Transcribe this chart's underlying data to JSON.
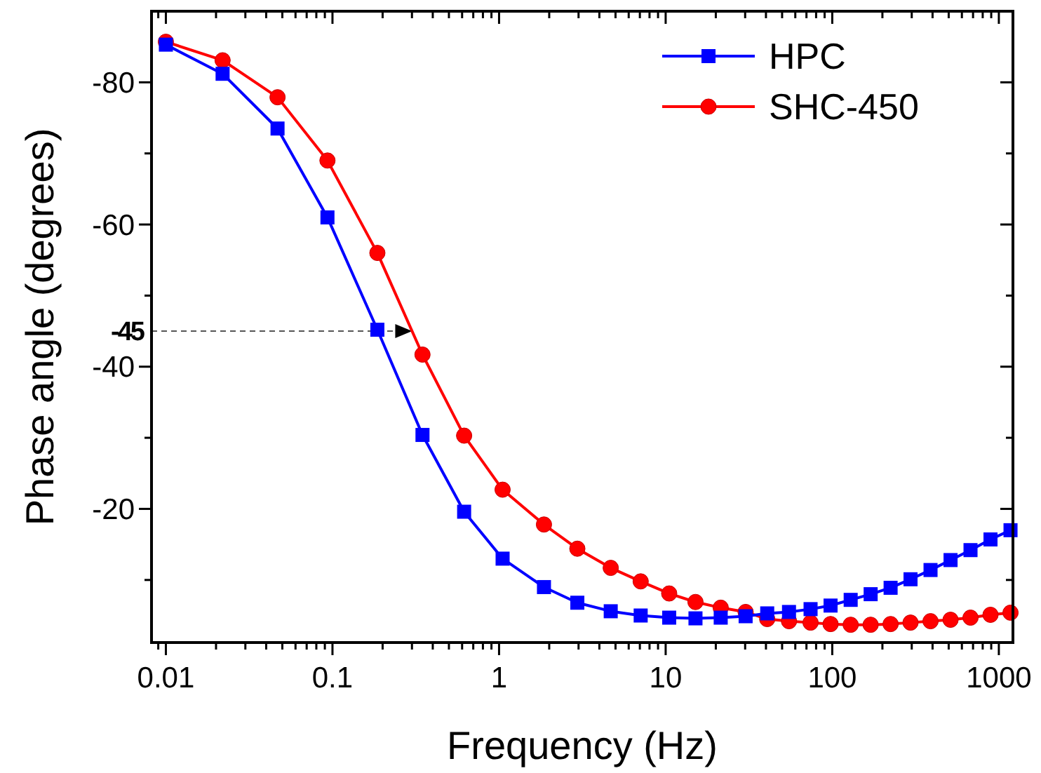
{
  "chart_data": {
    "type": "line",
    "xlabel": "Frequency (Hz)",
    "ylabel": "Phase angle (degrees)",
    "log": "x",
    "legend": "top right",
    "grid": false,
    "line_style": "solid",
    "x": [
      0.01,
      0.0219,
      0.0468,
      0.0933,
      0.186,
      0.347,
      0.617,
      1.05,
      1.86,
      2.95,
      4.68,
      7.08,
      10.5,
      15.1,
      21.4,
      30.2,
      40.7,
      55,
      74.1,
      97.7,
      129,
      170,
      224,
      295,
      389,
      513,
      676,
      891,
      1175
    ],
    "series": [
      {
        "name": "HPC",
        "color": "#0000ff",
        "marker": "square",
        "values": [
          -85.3,
          -81.2,
          -73.5,
          -61.0,
          -45.2,
          -30.4,
          -19.6,
          -13.0,
          -9.0,
          -6.8,
          -5.6,
          -5.0,
          -4.7,
          -4.6,
          -4.7,
          -4.9,
          -5.3,
          -5.5,
          -5.9,
          -6.4,
          -7.2,
          -8.0,
          -8.9,
          -10.1,
          -11.4,
          -12.8,
          -14.2,
          -15.7,
          -17.0
        ]
      },
      {
        "name": "SHC-450",
        "color": "#ff0000",
        "marker": "circle",
        "values": [
          -85.7,
          -83.1,
          -77.9,
          -69.0,
          -56.0,
          -41.7,
          -30.3,
          -22.7,
          -17.8,
          -14.4,
          -11.7,
          -9.8,
          -8.1,
          -6.9,
          -6.1,
          -5.5,
          -4.5,
          -4.2,
          -4.0,
          -3.8,
          -3.7,
          -3.7,
          -3.8,
          -4.0,
          -4.2,
          -4.4,
          -4.7,
          -5.1,
          -5.4
        ]
      }
    ],
    "xlim": [
      0.0082,
      1215
    ],
    "xticks": [
      {
        "value": 0.009,
        "label": null
      },
      0.01,
      {
        "value": 0.02,
        "label": null
      },
      {
        "value": 0.03,
        "label": null
      },
      {
        "value": 0.04,
        "label": null
      },
      {
        "value": 0.05,
        "label": null
      },
      {
        "value": 0.06,
        "label": null
      },
      {
        "value": 0.07,
        "label": null
      },
      {
        "value": 0.08,
        "label": null
      },
      {
        "value": 0.09,
        "label": null
      },
      0.1,
      {
        "value": 0.2,
        "label": null
      },
      {
        "value": 0.3,
        "label": null
      },
      {
        "value": 0.4,
        "label": null
      },
      {
        "value": 0.5,
        "label": null
      },
      {
        "value": 0.6,
        "label": null
      },
      {
        "value": 0.7,
        "label": null
      },
      {
        "value": 0.8,
        "label": null
      },
      {
        "value": 0.9,
        "label": null
      },
      1,
      {
        "value": 2,
        "label": null
      },
      {
        "value": 3,
        "label": null
      },
      {
        "value": 4,
        "label": null
      },
      {
        "value": 5,
        "label": null
      },
      {
        "value": 6,
        "label": null
      },
      {
        "value": 7,
        "label": null
      },
      {
        "value": 8,
        "label": null
      },
      {
        "value": 9,
        "label": null
      },
      10,
      {
        "value": 20,
        "label": null
      },
      {
        "value": 30,
        "label": null
      },
      {
        "value": 40,
        "label": null
      },
      {
        "value": 50,
        "label": null
      },
      {
        "value": 60,
        "label": null
      },
      {
        "value": 70,
        "label": null
      },
      {
        "value": 80,
        "label": null
      },
      {
        "value": 90,
        "label": null
      },
      100,
      {
        "value": 200,
        "label": null
      },
      {
        "value": 300,
        "label": null
      },
      {
        "value": 400,
        "label": null
      },
      {
        "value": 500,
        "label": null
      },
      {
        "value": 600,
        "label": null
      },
      {
        "value": 700,
        "label": null
      },
      {
        "value": 800,
        "label": null
      },
      {
        "value": 900,
        "label": null
      },
      1000
    ],
    "ylim": [
      -1.2,
      -90
    ],
    "yticks": [
      -80,
      {
        "value": -70,
        "label": null
      },
      -60,
      {
        "value": -50,
        "label": null
      },
      -40,
      {
        "value": -30,
        "label": null
      },
      -20,
      {
        "value": -10,
        "label": null
      }
    ],
    "ref_lines": [
      {
        "axis": "y",
        "value": -45,
        "label": "-45",
        "color": "#555555",
        "line_style": "dashed"
      }
    ]
  }
}
